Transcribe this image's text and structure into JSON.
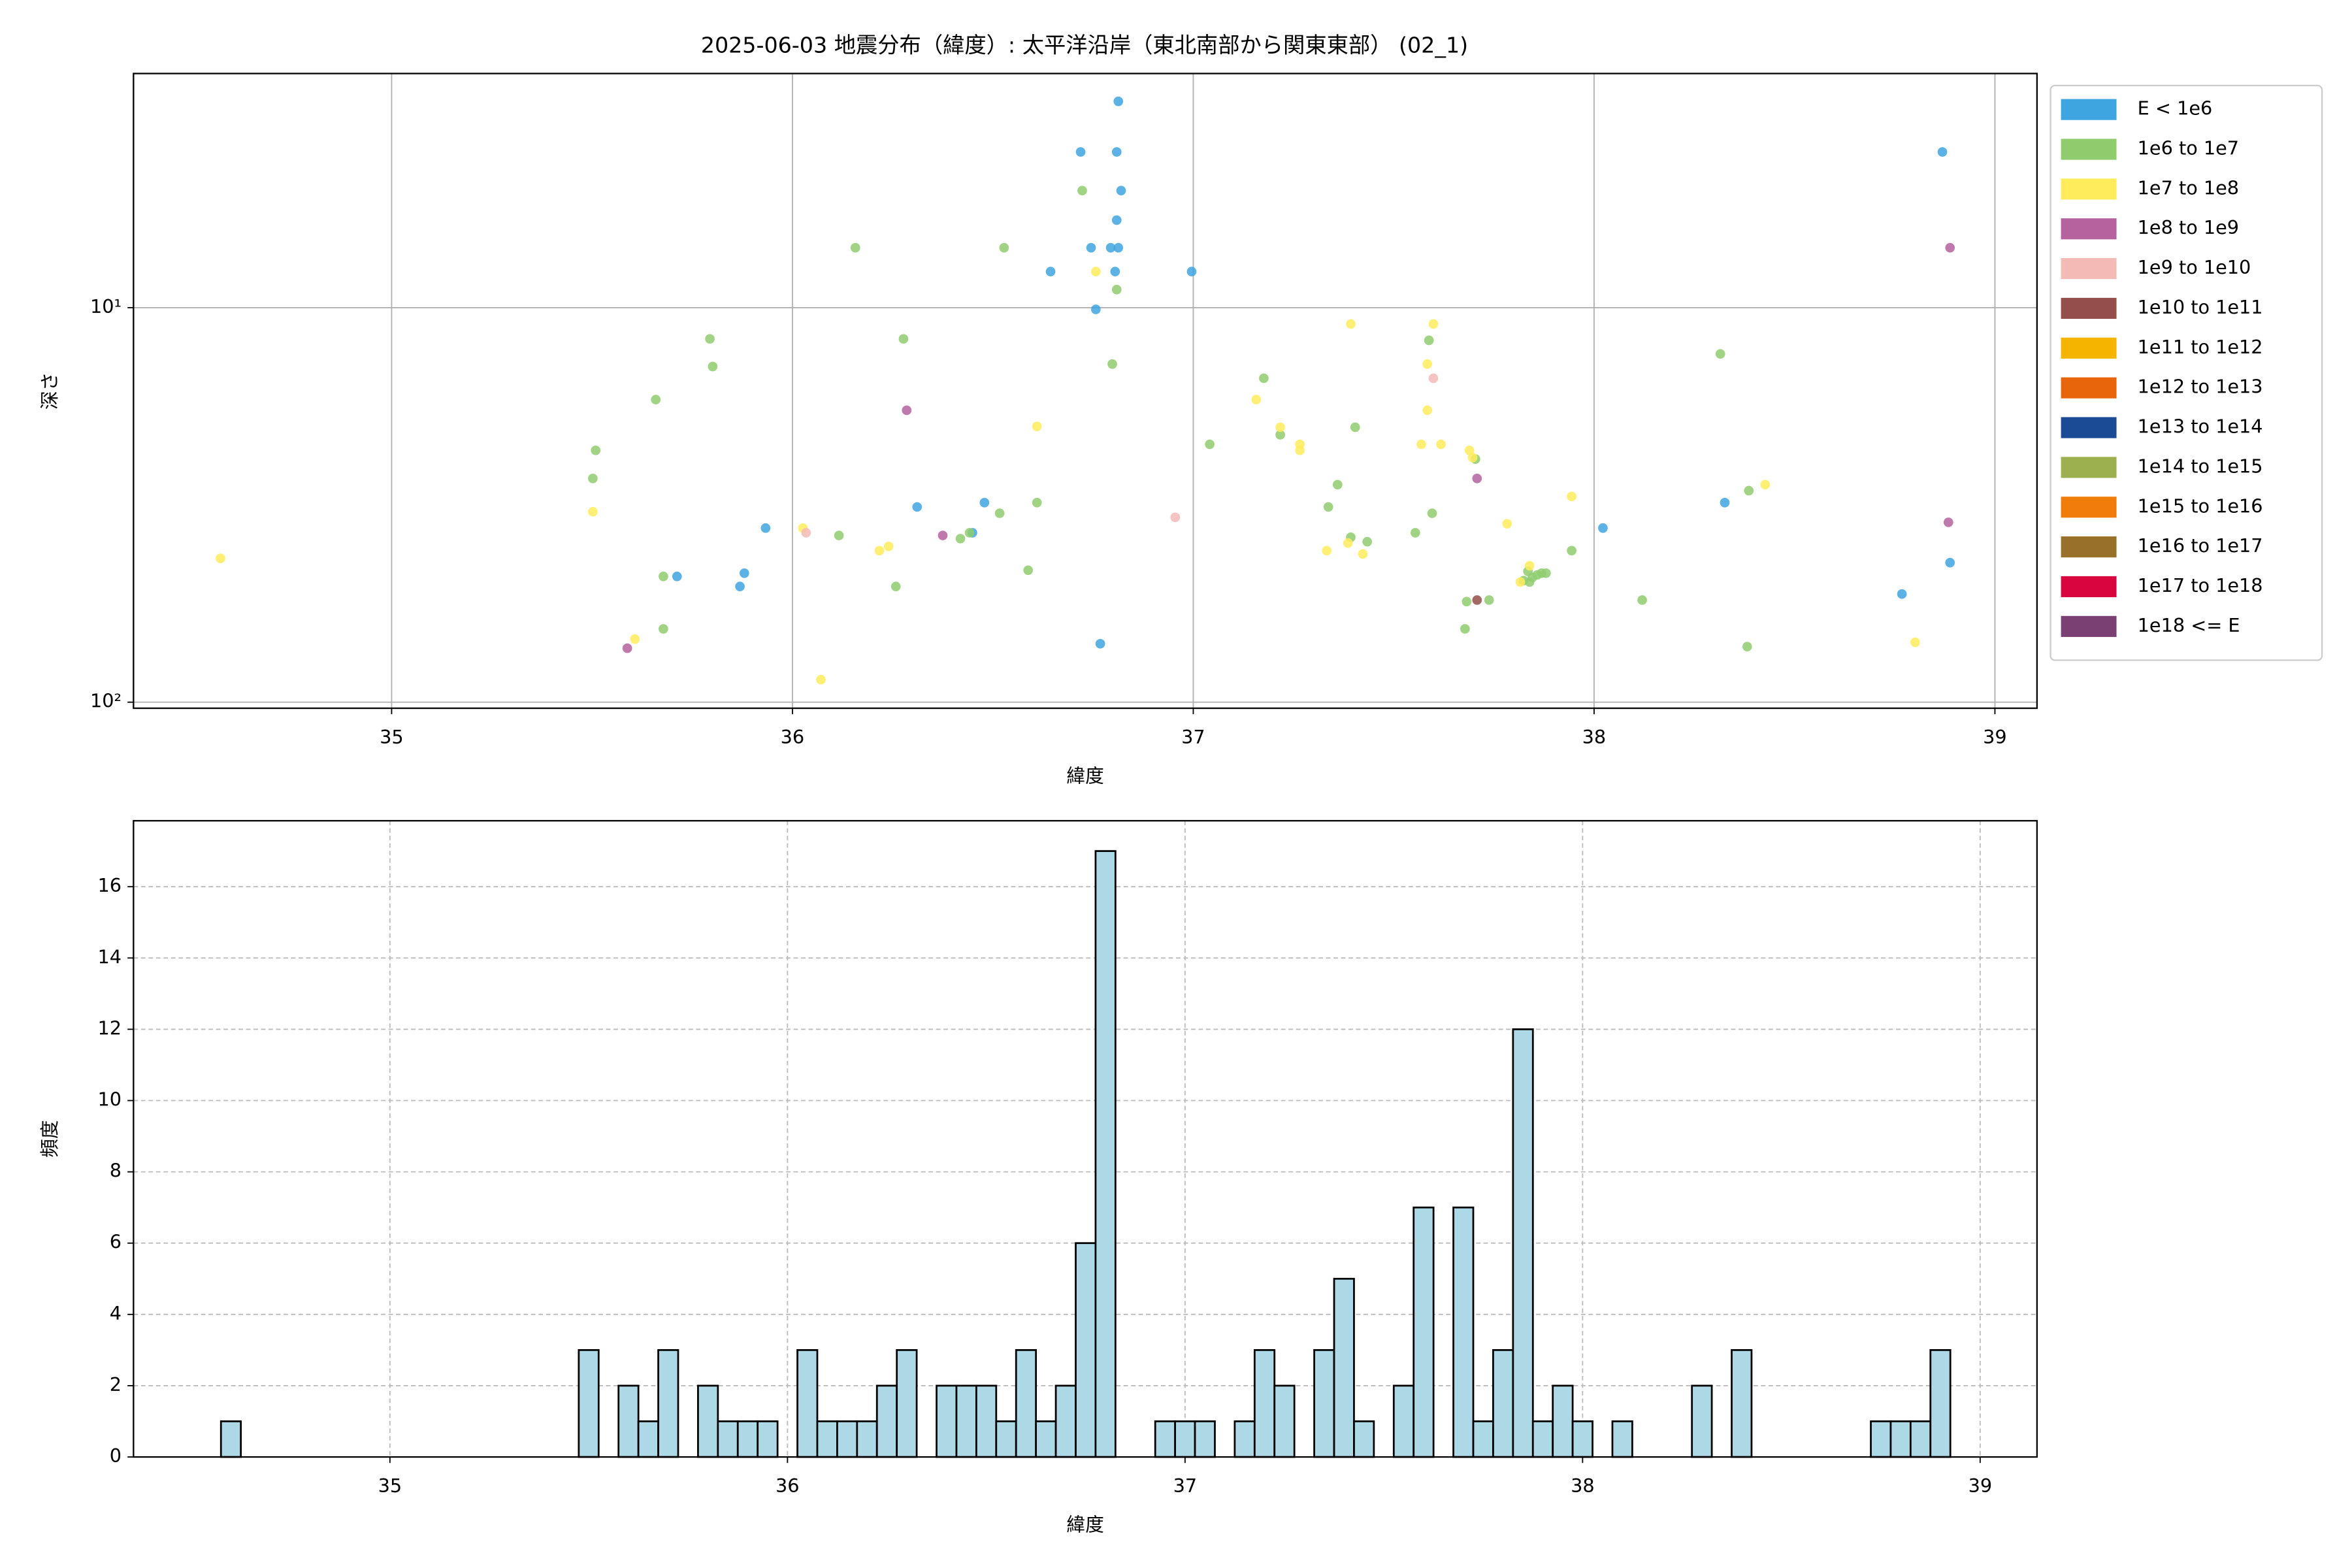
{
  "chart_data": [
    {
      "type": "scatter",
      "title": "2025-06-03 地震分布（緯度）: 太平洋沿岸（東北南部から関東東部） (02_1)",
      "xlabel": "緯度",
      "ylabel": "深さ",
      "xlim": [
        34.356,
        39.105
      ],
      "ylim": [
        103.6,
        2.55
      ],
      "log_y": true,
      "xticks": [
        35,
        36,
        37,
        38,
        39
      ],
      "yticks": [
        {
          "value": 10,
          "label": "10¹"
        },
        {
          "value": 100,
          "label": "10²"
        }
      ],
      "grid": "solid",
      "legend": "outside-right",
      "series": [
        {
          "name": "E < 1e6",
          "color": "#3fa5e0",
          "x": [
            36.813,
            36.719,
            36.809,
            36.82,
            36.809,
            36.813,
            36.745,
            36.794,
            36.805,
            36.644,
            36.996,
            36.757,
            38.869,
            36.311,
            36.479,
            36.449,
            35.933,
            35.88,
            35.869,
            35.712,
            36.768,
            38.022,
            38.326,
            38.888,
            38.768
          ],
          "values": [
            3.0,
            4.03,
            4.03,
            5.05,
            6.0,
            7.05,
            7.05,
            7.05,
            8.1,
            8.1,
            8.1,
            10.1,
            4.03,
            32,
            31.2,
            37.2,
            36.2,
            47.1,
            50.9,
            48,
            71.1,
            36.2,
            31.2,
            44.3,
            53.2
          ]
        },
        {
          "name": "1e6 to 1e7",
          "color": "#8fcc6e",
          "x": [
            36.723,
            36.528,
            36.157,
            36.809,
            36.798,
            35.794,
            35.801,
            35.659,
            35.509,
            35.502,
            36.277,
            35.678,
            35.678,
            36.116,
            36.258,
            36.419,
            36.442,
            36.517,
            36.61,
            36.588,
            37.176,
            37.217,
            37.041,
            37.404,
            37.36,
            37.337,
            37.393,
            37.434,
            37.554,
            37.588,
            37.596,
            37.704,
            37.682,
            37.678,
            37.738,
            37.824,
            37.835,
            37.846,
            37.858,
            37.869,
            37.88,
            37.839,
            37.944,
            38.12,
            38.315,
            38.386,
            38.382
          ],
          "values": [
            5.05,
            7.05,
            7.05,
            9.0,
            13.9,
            12.0,
            14.1,
            17.1,
            23.0,
            27.1,
            12.0,
            48,
            65.2,
            37.8,
            50.9,
            38.5,
            37.2,
            33.2,
            31.2,
            46.3,
            15.1,
            21.0,
            22.2,
            20.1,
            28.1,
            32,
            38.2,
            39.2,
            37.2,
            12.1,
            33.2,
            24.2,
            55.6,
            65.2,
            55.1,
            49.2,
            46.6,
            48.3,
            47.6,
            47.1,
            47.1,
            49.6,
            41.3,
            55.1,
            13.1,
            29.1,
            72.3
          ]
        },
        {
          "name": "1e7 to 1e8",
          "color": "#ffec5c",
          "x": [
            36.757,
            34.573,
            35.502,
            35.607,
            36.071,
            36.026,
            36.217,
            36.24,
            36.61,
            37.157,
            37.217,
            37.266,
            37.266,
            37.393,
            37.333,
            37.386,
            37.423,
            37.599,
            37.584,
            37.584,
            37.569,
            37.618,
            37.689,
            37.697,
            37.783,
            37.839,
            37.816,
            37.944,
            38.427,
            38.801
          ],
          "values": [
            8.1,
            43.2,
            32.9,
            69.2,
            87.7,
            36.2,
            41.3,
            40.3,
            20.0,
            17.1,
            20.1,
            22.2,
            23.0,
            11.0,
            41.3,
            39.5,
            42.1,
            11.0,
            13.9,
            18.2,
            22.2,
            22.2,
            23.0,
            24.0,
            35.3,
            45.1,
            49.6,
            30.1,
            28.1,
            70.5
          ]
        },
        {
          "name": "1e8 to 1e9",
          "color": "#b5629f",
          "x": [
            36.285,
            36.375,
            35.588,
            37.708,
            38.884,
            38.888
          ],
          "values": [
            18.2,
            37.8,
            73.0,
            27.1,
            35.0,
            7.05
          ]
        },
        {
          "name": "1e9 to 1e10",
          "color": "#f4bab5",
          "x": [
            37.599,
            36.955,
            36.034
          ],
          "values": [
            15.1,
            34.0,
            37.2
          ]
        },
        {
          "name": "1e10 to 1e11",
          "color": "#944f4a",
          "x": [
            37.708
          ],
          "values": [
            55.1
          ]
        },
        {
          "name": "1e11 to 1e12",
          "color": "#f5b400",
          "x": [],
          "values": []
        },
        {
          "name": "1e12 to 1e13",
          "color": "#e8650c",
          "x": [],
          "values": []
        },
        {
          "name": "1e13 to 1e14",
          "color": "#1c4b96",
          "x": [],
          "values": []
        },
        {
          "name": "1e14 to 1e15",
          "color": "#9cb04f",
          "x": [],
          "values": []
        },
        {
          "name": "1e15 to 1e16",
          "color": "#f07c0a",
          "x": [],
          "values": []
        },
        {
          "name": "1e16 to 1e17",
          "color": "#99702a",
          "x": [],
          "values": []
        },
        {
          "name": "1e17 to 1e18",
          "color": "#d8053e",
          "x": [],
          "values": []
        },
        {
          "name": "1e18 <= E",
          "color": "#7a3f73",
          "x": [],
          "values": []
        }
      ]
    },
    {
      "type": "histogram",
      "xlabel": "緯度",
      "ylabel": "頻度",
      "xlim": [
        34.355,
        39.143
      ],
      "ylim": [
        0,
        17.85
      ],
      "xticks": [
        35,
        36,
        37,
        38,
        39
      ],
      "yticks": [
        0,
        2,
        4,
        6,
        8,
        10,
        12,
        14,
        16
      ],
      "grid": "dashed",
      "color": "#add8e6",
      "edgecolor": "#000000",
      "bins": [
        34.575,
        34.625,
        34.675,
        34.725,
        34.775,
        34.825,
        34.875,
        34.925,
        34.975,
        35.025,
        35.075,
        35.125,
        35.175,
        35.225,
        35.275,
        35.325,
        35.375,
        35.425,
        35.475,
        35.525,
        35.575,
        35.625,
        35.675,
        35.725,
        35.775,
        35.825,
        35.875,
        35.925,
        35.975,
        36.025,
        36.075,
        36.125,
        36.175,
        36.225,
        36.275,
        36.325,
        36.375,
        36.425,
        36.475,
        36.525,
        36.575,
        36.625,
        36.675,
        36.725,
        36.775,
        36.825,
        36.875,
        36.925,
        36.975,
        37.025,
        37.075,
        37.125,
        37.175,
        37.225,
        37.275,
        37.325,
        37.375,
        37.425,
        37.475,
        37.525,
        37.575,
        37.625,
        37.675,
        37.725,
        37.775,
        37.825,
        37.875,
        37.925,
        37.975,
        38.025,
        38.075,
        38.125,
        38.175,
        38.225,
        38.275,
        38.325,
        38.375,
        38.425,
        38.475,
        38.525,
        38.575,
        38.625,
        38.675,
        38.725,
        38.775,
        38.825,
        38.875,
        38.925
      ],
      "values": [
        1,
        0,
        0,
        0,
        0,
        0,
        0,
        0,
        0,
        0,
        0,
        0,
        0,
        0,
        0,
        0,
        0,
        0,
        3,
        0,
        2,
        1,
        3,
        0,
        2,
        1,
        1,
        1,
        0,
        3,
        1,
        1,
        1,
        2,
        3,
        0,
        2,
        2,
        2,
        1,
        3,
        1,
        2,
        6,
        17,
        0,
        0,
        1,
        1,
        1,
        0,
        1,
        3,
        2,
        0,
        3,
        5,
        1,
        0,
        2,
        7,
        0,
        7,
        1,
        3,
        12,
        1,
        2,
        1,
        0,
        1,
        0,
        0,
        0,
        2,
        0,
        3,
        0,
        0,
        0,
        0,
        0,
        0,
        1,
        1,
        1,
        3
      ]
    }
  ]
}
